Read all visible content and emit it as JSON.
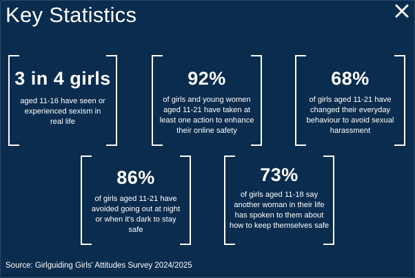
{
  "header": {
    "title": "Key Statistics",
    "close_icon": "close-icon"
  },
  "stats": [
    {
      "value": "3 in 4 girls",
      "text": "aged 11-16 have seen or experienced sexism in real life"
    },
    {
      "value": "92%",
      "text": "of girls and young women aged 11-21 have taken at least one action to enhance their online safety"
    },
    {
      "value": "68%",
      "text": "of girls aged 11-21 have changed their everyday behaviour to avoid sexual harassment"
    },
    {
      "value": "86%",
      "text": "of girls aged 11-21 have avoided going out at night or when it's dark to stay safe"
    },
    {
      "value": "73%",
      "text": "of girls aged 11-18 say another woman in their life has spoken to them about how to keep themselves safe"
    }
  ],
  "footer": {
    "source": "Source: Girlguiding Girls' Attitudes Survey 2024/2025"
  }
}
